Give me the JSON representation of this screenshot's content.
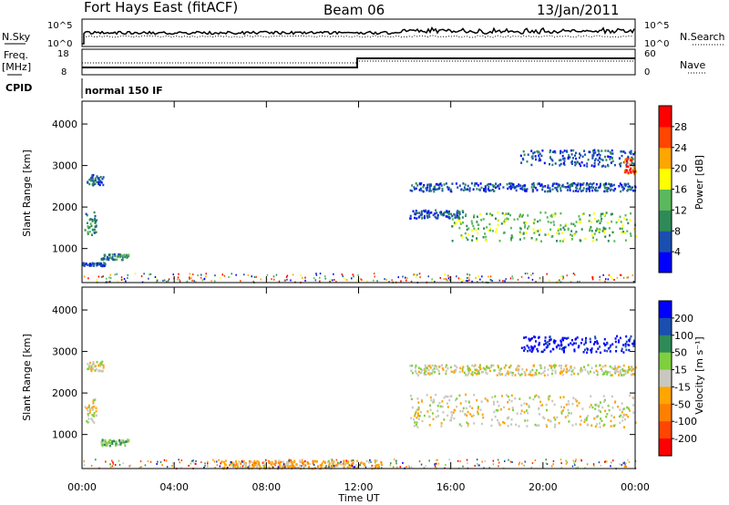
{
  "header": {
    "station": "Fort Hays East (fitACF)",
    "beam": "Beam 06",
    "date": "13/Jan/2011"
  },
  "top_panels": {
    "nsky_label": "N.Sky",
    "nsky_ticks": [
      "10^5",
      "10^0"
    ],
    "nsearch_label": "N.Search",
    "nsearch_ticks": [
      "10^5",
      "10^0"
    ],
    "freq_label": "Freq.",
    "freq_unit": "[MHz]",
    "freq_ticks": [
      "18",
      "8"
    ],
    "nave_label": "Nave",
    "nave_ticks": [
      "60",
      "0"
    ],
    "cpid_label": "CPID",
    "cpid_mode": "normal 150 IF"
  },
  "chart_data": [
    {
      "type": "heatmap",
      "name": "power",
      "ylabel": "Slant Range [km]",
      "xlabel": "",
      "x_ticks": [
        "00:00",
        "04:00",
        "08:00",
        "12:00",
        "16:00",
        "20:00",
        "00:00"
      ],
      "y_ticks": [
        "1000",
        "2000",
        "3000",
        "4000"
      ],
      "ylim": [
        180,
        4550
      ],
      "xlim_hours": [
        0,
        24
      ],
      "colorbar": {
        "label": "Power [dB]",
        "ticks": [
          "4",
          "8",
          "12",
          "16",
          "20",
          "24",
          "28"
        ],
        "colors": [
          "#0000ff",
          "#1a4fb0",
          "#2e8b57",
          "#5cb85c",
          "#ffff00",
          "#ffa500",
          "#ff4500",
          "#ff0000"
        ]
      },
      "regions": [
        {
          "t": [
            0.1,
            0.6
          ],
          "r": [
            1300,
            1900
          ],
          "level": 2
        },
        {
          "t": [
            0.2,
            0.9
          ],
          "r": [
            2550,
            2800
          ],
          "level": 1
        },
        {
          "t": [
            0.8,
            2.0
          ],
          "r": [
            750,
            900
          ],
          "level": 2
        },
        {
          "t": [
            0.0,
            1.0
          ],
          "r": [
            600,
            680
          ],
          "level": 1
        },
        {
          "t": [
            14.2,
            16.5
          ],
          "r": [
            1750,
            1950
          ],
          "level": 1
        },
        {
          "t": [
            16.0,
            24.0
          ],
          "r": [
            1200,
            1900
          ],
          "level": 3
        },
        {
          "t": [
            14.2,
            24.0
          ],
          "r": [
            2400,
            2600
          ],
          "level": 1
        },
        {
          "t": [
            19.0,
            24.0
          ],
          "r": [
            3000,
            3400
          ],
          "level": 1
        },
        {
          "t": [
            23.5,
            24.0
          ],
          "r": [
            2800,
            3200
          ],
          "level": 6
        }
      ]
    },
    {
      "type": "heatmap",
      "name": "velocity",
      "ylabel": "Slant Range [km]",
      "xlabel": "Time UT",
      "x_ticks": [
        "00:00",
        "04:00",
        "08:00",
        "12:00",
        "16:00",
        "20:00",
        "00:00"
      ],
      "y_ticks": [
        "1000",
        "2000",
        "3000",
        "4000"
      ],
      "ylim": [
        180,
        4550
      ],
      "xlim_hours": [
        0,
        24
      ],
      "colorbar": {
        "label": "Velocity [m s⁻¹]",
        "ticks": [
          "200",
          "100",
          "50",
          "15",
          "-15",
          "-50",
          "-100",
          "-200"
        ],
        "colors": [
          "#0000ff",
          "#1a4fb0",
          "#2e8b57",
          "#7fcf3f",
          "#c8c8c0",
          "#ffa500",
          "#ff7f00",
          "#ff4500",
          "#ff0000"
        ]
      },
      "regions": [
        {
          "t": [
            0.1,
            0.6
          ],
          "r": [
            1300,
            1900
          ],
          "level": 4
        },
        {
          "t": [
            0.2,
            0.9
          ],
          "r": [
            2550,
            2800
          ],
          "level": 4
        },
        {
          "t": [
            0.8,
            2.0
          ],
          "r": [
            750,
            900
          ],
          "level": 3
        },
        {
          "t": [
            14.2,
            24.0
          ],
          "r": [
            1200,
            2000
          ],
          "level": 4
        },
        {
          "t": [
            14.2,
            24.0
          ],
          "r": [
            2450,
            2700
          ],
          "level": 4
        },
        {
          "t": [
            19.0,
            24.0
          ],
          "r": [
            3000,
            3400
          ],
          "level": 0
        },
        {
          "t": [
            6.0,
            13.0
          ],
          "r": [
            200,
            400
          ],
          "level": 5
        }
      ]
    }
  ]
}
